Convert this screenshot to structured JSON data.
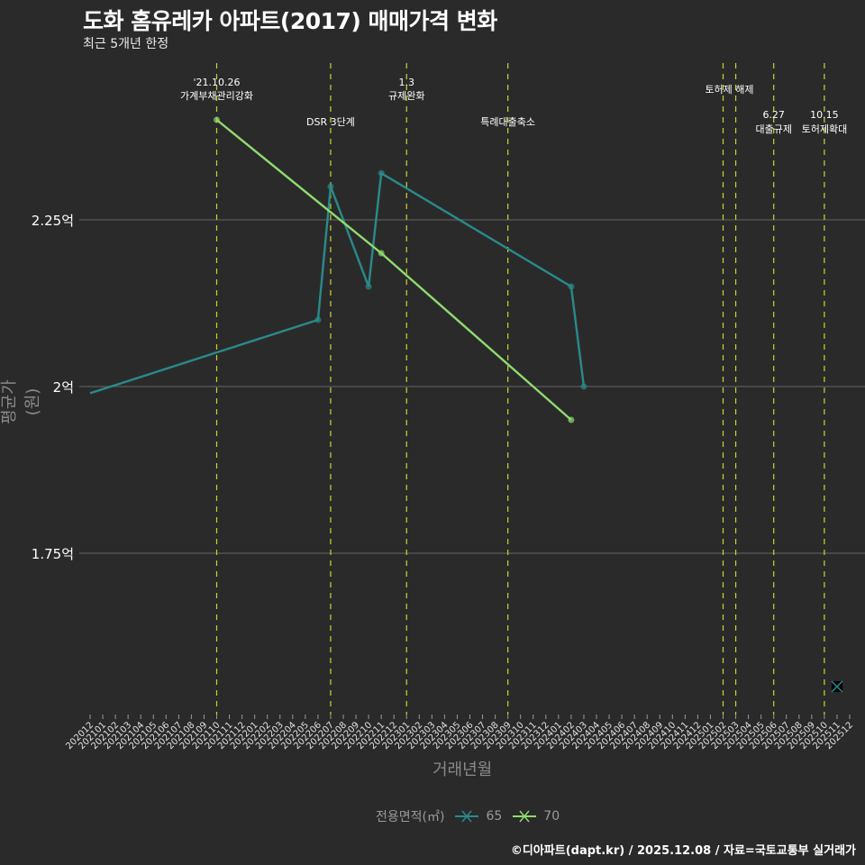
{
  "header": {
    "title": "도화 홈유레카 아파트(2017) 매매가격 변화",
    "subtitle": "최근 5개년 한정"
  },
  "axes": {
    "ylabel": "평균가(원)",
    "xlabel": "거래년월"
  },
  "legend": {
    "title": "전용면적(㎡)",
    "items": [
      {
        "label": "65",
        "color": "#2a8a8a"
      },
      {
        "label": "70",
        "color": "#8fdc6e"
      }
    ]
  },
  "caption": "©디아파트(dapt.kr) / 2025.12.08 / 자료=국토교통부 실거래가",
  "colors": {
    "background": "#2b2a2b",
    "gridline": "#5a5a5a",
    "event_line": "#c8d62a",
    "series_65": "#2a8a8a",
    "series_70": "#8fdc6e"
  },
  "chart_data": {
    "type": "line",
    "title": "도화 홈유레카 아파트(2017) 매매가격 변화",
    "subtitle": "최근 5개년 한정",
    "xlabel": "거래년월",
    "ylabel": "평균가(원)",
    "x_ticks": [
      "202012",
      "202101",
      "202102",
      "202103",
      "202104",
      "202105",
      "202106",
      "202107",
      "202108",
      "202109",
      "202110",
      "202111",
      "202112",
      "202201",
      "202202",
      "202203",
      "202204",
      "202205",
      "202206",
      "202207",
      "202208",
      "202209",
      "202210",
      "202211",
      "202212",
      "202301",
      "202302",
      "202303",
      "202304",
      "202305",
      "202306",
      "202307",
      "202308",
      "202309",
      "202310",
      "202311",
      "202312",
      "202401",
      "202402",
      "202403",
      "202404",
      "202405",
      "202406",
      "202407",
      "202408",
      "202409",
      "202410",
      "202411",
      "202412",
      "202501",
      "202502",
      "202503",
      "202504",
      "202505",
      "202506",
      "202507",
      "202508",
      "202509",
      "202510",
      "202511",
      "202512"
    ],
    "y_ticks": [
      "1.75억",
      "2억",
      "2.25억"
    ],
    "y_tick_values": [
      1.75,
      2.0,
      2.25
    ],
    "ylim": [
      1.5,
      2.45
    ],
    "unit": "억",
    "grid": true,
    "legend_position": "bottom",
    "series": [
      {
        "name": "65",
        "x": [
          "202012",
          "202206",
          "202207",
          "202210",
          "202211",
          "202402",
          "202403",
          "202511"
        ],
        "values": [
          1.99,
          2.1,
          2.3,
          2.15,
          2.32,
          2.15,
          2.0,
          1.55
        ],
        "note": "202511 point shown as X marker, not connected"
      },
      {
        "name": "70",
        "x": [
          "202110",
          "202211",
          "202402"
        ],
        "values": [
          2.4,
          2.2,
          1.95
        ]
      }
    ],
    "annotations": [
      {
        "x": "202110",
        "line1": "'21.10.26",
        "line2": "가계부채관리강화"
      },
      {
        "x": "202207",
        "line1": "",
        "line2": "DSR 3단계"
      },
      {
        "x": "202301",
        "line1": "1.3",
        "line2": "규제완화"
      },
      {
        "x": "202309",
        "line1": "",
        "line2": "특례대출축소"
      },
      {
        "x": "202502",
        "line1": "",
        "line2": "토허제 해제"
      },
      {
        "x": "202503",
        "line1": "",
        "line2": ""
      },
      {
        "x": "202506",
        "line1": "6.27",
        "line2": "대출규제"
      },
      {
        "x": "202510",
        "line1": "10.15",
        "line2": "토허제확대"
      }
    ]
  }
}
